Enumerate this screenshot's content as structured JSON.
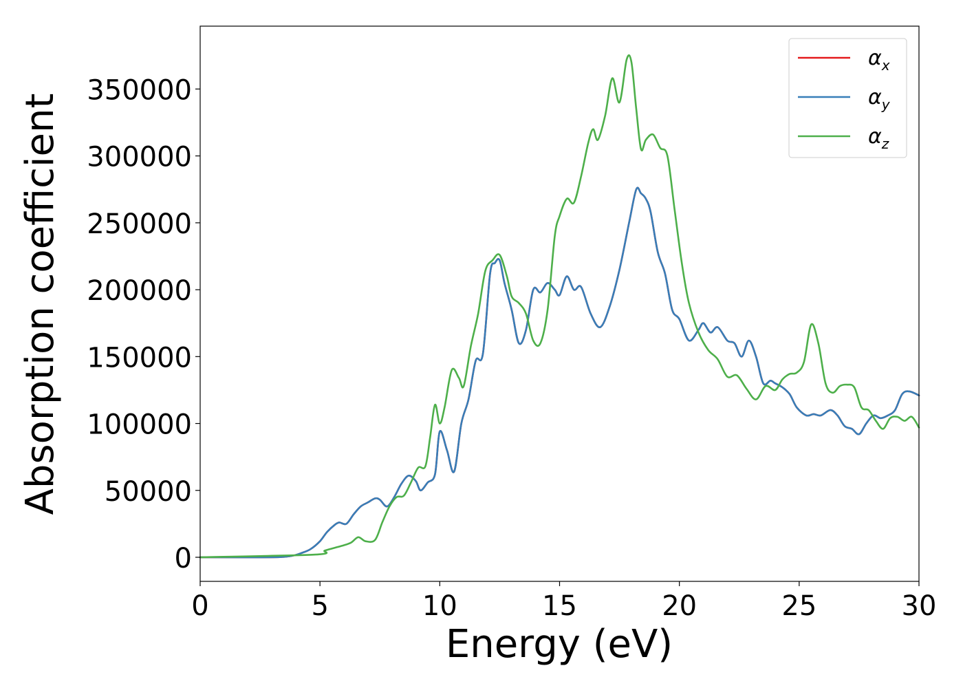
{
  "chart_data": {
    "type": "line",
    "xlabel": "Energy (eV)",
    "ylabel": "Absorption coefficient",
    "xlim": [
      0,
      30
    ],
    "ylim": [
      -18000,
      397000
    ],
    "xticks": [
      0,
      5,
      10,
      15,
      20,
      25,
      30
    ],
    "yticks": [
      0,
      50000,
      100000,
      150000,
      200000,
      250000,
      300000,
      350000
    ],
    "grid": false,
    "legend_position": "top-right",
    "series": [
      {
        "name": "α_x",
        "legend_base": "α",
        "legend_sub": "x",
        "color": "#e41a1c",
        "x": [
          0,
          3,
          3.8,
          4.2,
          4.6,
          5.0,
          5.3,
          5.6,
          5.8,
          6.1,
          6.4,
          6.7,
          7.0,
          7.3,
          7.5,
          7.8,
          8.1,
          8.4,
          8.7,
          9.0,
          9.2,
          9.5,
          9.8,
          10.0,
          10.3,
          10.6,
          10.9,
          11.2,
          11.5,
          11.8,
          12.1,
          12.3,
          12.5,
          12.7,
          13.0,
          13.3,
          13.6,
          13.9,
          14.2,
          14.5,
          14.8,
          15.0,
          15.3,
          15.6,
          15.9,
          16.3,
          16.7,
          17.1,
          17.5,
          17.9,
          18.2,
          18.4,
          18.6,
          18.8,
          19.1,
          19.4,
          19.7,
          20.0,
          20.4,
          20.8,
          21.0,
          21.3,
          21.6,
          22.0,
          22.3,
          22.6,
          22.9,
          23.2,
          23.5,
          23.8,
          24.0,
          24.3,
          24.6,
          24.9,
          25.3,
          25.6,
          25.9,
          26.3,
          26.6,
          26.9,
          27.2,
          27.5,
          27.8,
          28.1,
          28.4,
          28.7,
          29.0,
          29.3,
          29.6,
          30.0
        ],
        "y": [
          0,
          0,
          1000,
          3000,
          6000,
          12000,
          19000,
          24000,
          26000,
          25000,
          32000,
          38000,
          41000,
          44000,
          43000,
          38000,
          45000,
          55000,
          61000,
          57000,
          50000,
          56000,
          62000,
          94000,
          80000,
          64000,
          100000,
          118000,
          147000,
          152000,
          212000,
          220000,
          222000,
          205000,
          185000,
          160000,
          170000,
          200000,
          198000,
          205000,
          200000,
          196000,
          210000,
          200000,
          202000,
          182000,
          172000,
          188000,
          215000,
          250000,
          275000,
          272000,
          268000,
          258000,
          228000,
          212000,
          185000,
          178000,
          162000,
          170000,
          175000,
          168000,
          172000,
          162000,
          160000,
          150000,
          162000,
          150000,
          130000,
          132000,
          130000,
          127000,
          122000,
          112000,
          106000,
          107000,
          106000,
          110000,
          106000,
          98000,
          96000,
          92000,
          100000,
          106000,
          104000,
          106000,
          110000,
          122000,
          124000,
          121000
        ]
      },
      {
        "name": "α_y",
        "legend_base": "α",
        "legend_sub": "y",
        "color": "#377eb8",
        "x": [
          0,
          3,
          3.8,
          4.2,
          4.6,
          5.0,
          5.3,
          5.6,
          5.8,
          6.1,
          6.4,
          6.7,
          7.0,
          7.3,
          7.5,
          7.8,
          8.1,
          8.4,
          8.7,
          9.0,
          9.2,
          9.5,
          9.8,
          10.0,
          10.3,
          10.6,
          10.9,
          11.2,
          11.5,
          11.8,
          12.1,
          12.3,
          12.5,
          12.7,
          13.0,
          13.3,
          13.6,
          13.9,
          14.2,
          14.5,
          14.8,
          15.0,
          15.3,
          15.6,
          15.9,
          16.3,
          16.7,
          17.1,
          17.5,
          17.9,
          18.2,
          18.4,
          18.6,
          18.8,
          19.1,
          19.4,
          19.7,
          20.0,
          20.4,
          20.8,
          21.0,
          21.3,
          21.6,
          22.0,
          22.3,
          22.6,
          22.9,
          23.2,
          23.5,
          23.8,
          24.0,
          24.3,
          24.6,
          24.9,
          25.3,
          25.6,
          25.9,
          26.3,
          26.6,
          26.9,
          27.2,
          27.5,
          27.8,
          28.1,
          28.4,
          28.7,
          29.0,
          29.3,
          29.6,
          30.0
        ],
        "y": [
          0,
          0,
          1000,
          3000,
          6000,
          12000,
          19000,
          24000,
          26000,
          25000,
          32000,
          38000,
          41000,
          44000,
          43000,
          38000,
          45000,
          55000,
          61000,
          57000,
          50000,
          56000,
          62000,
          94000,
          80000,
          64000,
          100000,
          118000,
          147000,
          152000,
          212000,
          220000,
          222000,
          205000,
          185000,
          160000,
          170000,
          200000,
          198000,
          205000,
          200000,
          196000,
          210000,
          200000,
          202000,
          182000,
          172000,
          188000,
          215000,
          250000,
          275000,
          272000,
          268000,
          258000,
          228000,
          212000,
          185000,
          178000,
          162000,
          170000,
          175000,
          168000,
          172000,
          162000,
          160000,
          150000,
          162000,
          150000,
          130000,
          132000,
          130000,
          127000,
          122000,
          112000,
          106000,
          107000,
          106000,
          110000,
          106000,
          98000,
          96000,
          92000,
          100000,
          106000,
          104000,
          106000,
          110000,
          122000,
          124000,
          121000
        ]
      },
      {
        "name": "α_z",
        "legend_base": "α",
        "legend_sub": "z",
        "color": "#4daf4a",
        "x": [
          0,
          4.8,
          5.2,
          5.6,
          6.0,
          6.3,
          6.6,
          6.9,
          7.3,
          7.6,
          7.9,
          8.2,
          8.5,
          8.8,
          9.1,
          9.4,
          9.6,
          9.8,
          10.0,
          10.2,
          10.5,
          10.8,
          11.0,
          11.3,
          11.6,
          11.9,
          12.2,
          12.5,
          12.8,
          13.0,
          13.3,
          13.6,
          13.9,
          14.2,
          14.5,
          14.8,
          15.0,
          15.3,
          15.6,
          15.9,
          16.2,
          16.4,
          16.6,
          16.9,
          17.2,
          17.5,
          17.8,
          18.0,
          18.2,
          18.4,
          18.6,
          18.9,
          19.2,
          19.5,
          19.8,
          20.1,
          20.4,
          20.8,
          21.2,
          21.6,
          22.0,
          22.4,
          22.8,
          23.2,
          23.6,
          24.0,
          24.3,
          24.6,
          24.9,
          25.2,
          25.5,
          25.8,
          26.1,
          26.4,
          26.7,
          27.0,
          27.3,
          27.6,
          27.9,
          28.2,
          28.5,
          28.8,
          29.1,
          29.4,
          29.7,
          30.0
        ],
        "y": [
          0,
          2000,
          5000,
          7000,
          9000,
          11000,
          15000,
          12000,
          13000,
          26000,
          38000,
          45000,
          46000,
          56000,
          67000,
          68000,
          90000,
          114000,
          100000,
          112000,
          140000,
          134000,
          128000,
          158000,
          182000,
          214000,
          222000,
          226000,
          210000,
          195000,
          190000,
          182000,
          162000,
          160000,
          185000,
          240000,
          255000,
          268000,
          265000,
          285000,
          310000,
          320000,
          312000,
          330000,
          358000,
          340000,
          372000,
          370000,
          335000,
          305000,
          312000,
          316000,
          306000,
          300000,
          260000,
          220000,
          190000,
          168000,
          155000,
          148000,
          135000,
          136000,
          126000,
          118000,
          128000,
          125000,
          133000,
          137000,
          138000,
          146000,
          174000,
          160000,
          130000,
          123000,
          128000,
          129000,
          127000,
          112000,
          110000,
          102000,
          96000,
          104000,
          105000,
          102000,
          105000,
          97000
        ]
      }
    ]
  }
}
